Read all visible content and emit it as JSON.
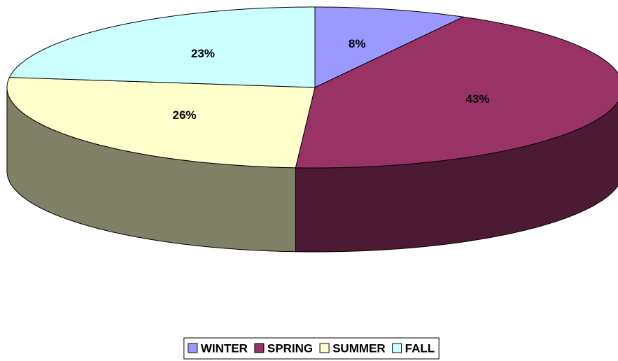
{
  "chart_data": {
    "type": "pie3d",
    "categories": [
      "WINTER",
      "SPRING",
      "SUMMER",
      "FALL"
    ],
    "values": [
      8,
      43,
      26,
      23
    ],
    "value_labels": [
      "8%",
      "43%",
      "26%",
      "23%"
    ],
    "colors": [
      "#9999ff",
      "#993366",
      "#ffffcc",
      "#ccffff"
    ],
    "legend": "bottom"
  }
}
